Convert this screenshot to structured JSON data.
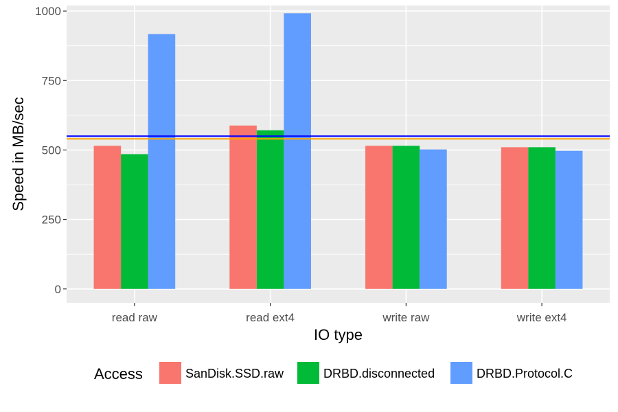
{
  "chart_data": {
    "type": "bar",
    "categories": [
      "read raw",
      "read ext4",
      "write raw",
      "write ext4"
    ],
    "series": [
      {
        "name": "SanDisk.SSD.raw",
        "color": "#F8766D",
        "values": [
          515,
          588,
          515,
          510
        ]
      },
      {
        "name": "DRBD.disconnected",
        "color": "#00BA38",
        "values": [
          485,
          571,
          515,
          510
        ]
      },
      {
        "name": "DRBD.Protocol.C",
        "color": "#619CFF",
        "values": [
          917,
          992,
          502,
          497
        ]
      }
    ],
    "reference_lines": [
      {
        "value": 550,
        "color": "#0000FF"
      },
      {
        "value": 540,
        "color": "#FFA500"
      }
    ],
    "xlabel": "IO type",
    "ylabel": "Speed in MB/sec",
    "ylim": [
      -50,
      1020
    ],
    "yticks": [
      0,
      250,
      500,
      750,
      1000
    ],
    "legend_title": "Access",
    "legend_position": "bottom",
    "grid": true,
    "panel_background": "#EBEBEB"
  }
}
